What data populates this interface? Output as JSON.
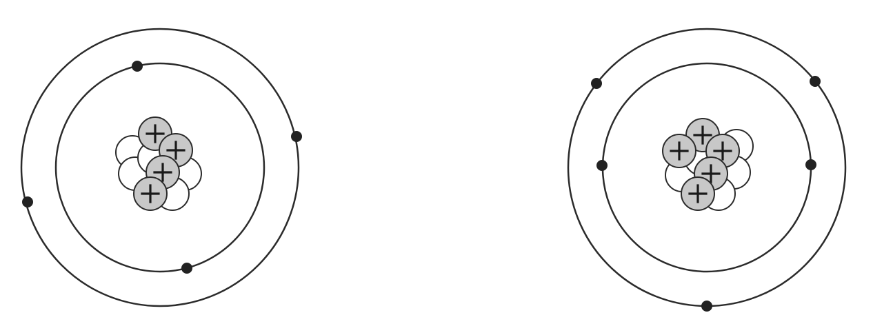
{
  "colors": {
    "orbit": "#2b2b2b",
    "electron": "#222222",
    "proton_fill": "#c8c8c8",
    "neutron_fill": "#ffffff",
    "particle_stroke": "#2b2b2b",
    "plus_sign": "#1a1a1a"
  },
  "atoms": [
    {
      "name": "left-atom",
      "proton_count": 4,
      "neutron_count": 5,
      "electron_count": 4,
      "shells": [
        {
          "name": "inner",
          "electron_count": 2
        },
        {
          "name": "outer",
          "electron_count": 2
        }
      ]
    },
    {
      "name": "right-atom",
      "proton_count": 5,
      "neutron_count": 5,
      "electron_count": 5,
      "shells": [
        {
          "name": "inner",
          "electron_count": 2
        },
        {
          "name": "outer",
          "electron_count": 3
        }
      ]
    }
  ]
}
